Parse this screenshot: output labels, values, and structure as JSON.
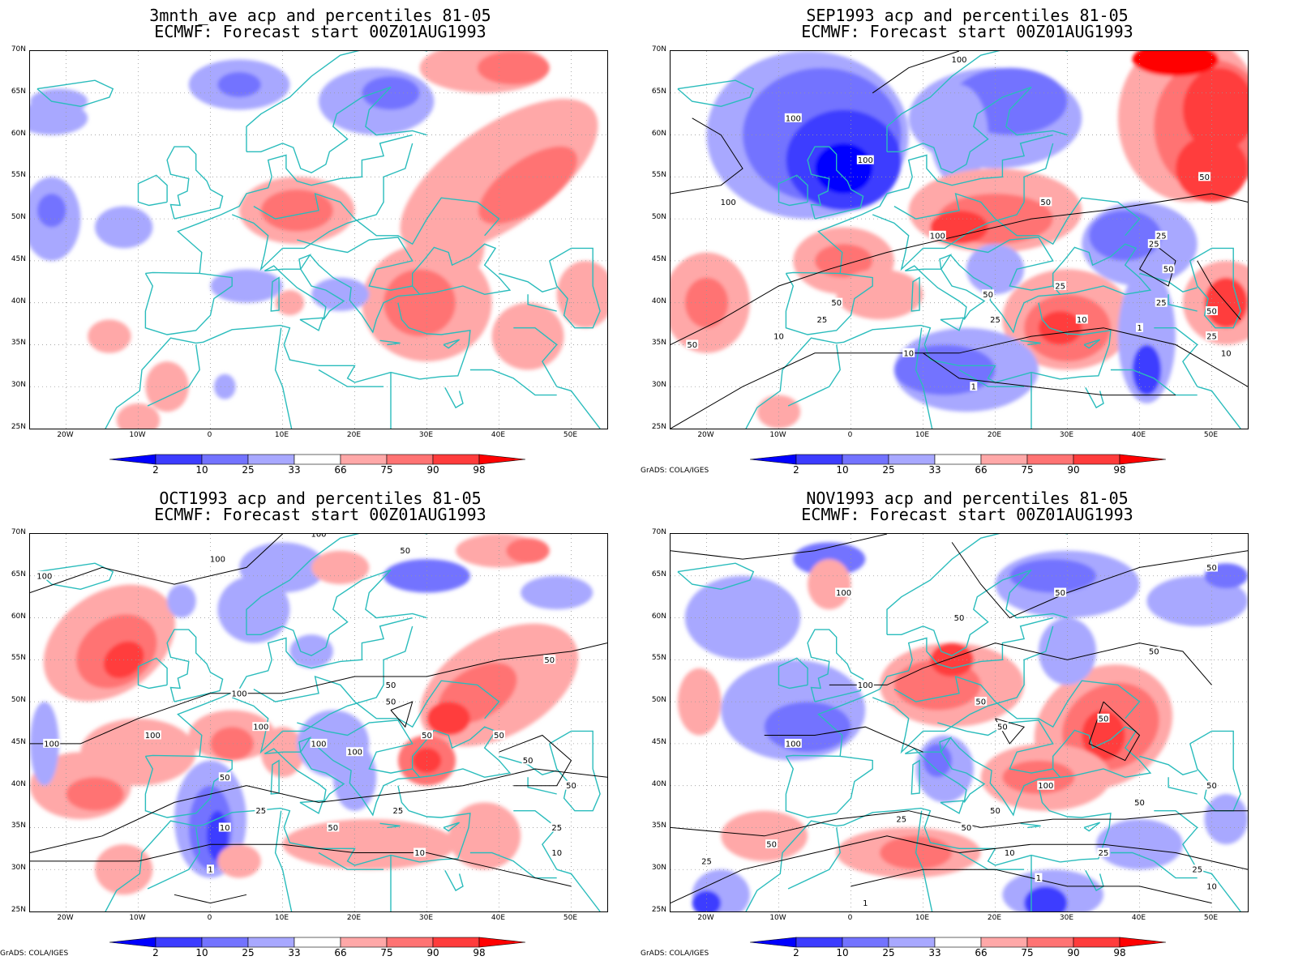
{
  "colors": {
    "blue_98": "#0000ff",
    "blue_90": "#3c3cff",
    "blue_75": "#7373ff",
    "blue_66": "#a8a8ff",
    "red_66": "#ffa8a8",
    "red_75": "#ff7373",
    "red_90": "#ff3c3c",
    "red_98": "#ff0000",
    "coast": "#2abcbc",
    "contour": "#000000",
    "grid": "#999999"
  },
  "axes": {
    "lat_ticks": [
      "70N",
      "65N",
      "60N",
      "55N",
      "50N",
      "45N",
      "40N",
      "35N",
      "30N",
      "25N"
    ],
    "lon_ticks": [
      "20W",
      "10W",
      "0",
      "10E",
      "20E",
      "30E",
      "40E",
      "50E"
    ],
    "lat_range": [
      25,
      70
    ],
    "lon_range": [
      -25,
      55
    ]
  },
  "colorbar": {
    "labels": [
      "2",
      "10",
      "25",
      "33",
      "66",
      "75",
      "90",
      "98"
    ],
    "colors": [
      "#0000ff",
      "#3c3cff",
      "#7373ff",
      "#a8a8ff",
      "#ffffff",
      "#ffa8a8",
      "#ff7373",
      "#ff3c3c",
      "#ff0000"
    ]
  },
  "credit": "GrADS: COLA/IGES",
  "panels": [
    {
      "title1": "3mnth_ave acp and percentiles 81-05",
      "title2": "ECMWF: Forecast start 00Z01AUG1993",
      "contours": []
    },
    {
      "title1": "SEP1993 acp and percentiles 81-05",
      "title2": "ECMWF: Forecast start 00Z01AUG1993",
      "contours": [
        {
          "label": "100",
          "lon": -8,
          "lat": 62
        },
        {
          "label": "100",
          "lon": 2,
          "lat": 57
        },
        {
          "label": "100",
          "lon": -17,
          "lat": 52
        },
        {
          "label": "100",
          "lon": 12,
          "lat": 48
        },
        {
          "label": "100",
          "lon": 15,
          "lat": 69
        },
        {
          "label": "50",
          "lon": 27,
          "lat": 52
        },
        {
          "label": "50",
          "lon": 49,
          "lat": 55
        },
        {
          "label": "50",
          "lon": -2,
          "lat": 40
        },
        {
          "label": "50",
          "lon": -22,
          "lat": 35
        },
        {
          "label": "50",
          "lon": 19,
          "lat": 41
        },
        {
          "label": "50",
          "lon": 44,
          "lat": 44
        },
        {
          "label": "50",
          "lon": 50,
          "lat": 39
        },
        {
          "label": "25",
          "lon": -4,
          "lat": 38
        },
        {
          "label": "25",
          "lon": 43,
          "lat": 48
        },
        {
          "label": "25",
          "lon": 42,
          "lat": 47
        },
        {
          "label": "25",
          "lon": 29,
          "lat": 42
        },
        {
          "label": "25",
          "lon": 20,
          "lat": 38
        },
        {
          "label": "25",
          "lon": 43,
          "lat": 40
        },
        {
          "label": "25",
          "lon": 50,
          "lat": 36
        },
        {
          "label": "10",
          "lon": -10,
          "lat": 36
        },
        {
          "label": "10",
          "lon": 32,
          "lat": 38
        },
        {
          "label": "10",
          "lon": 8,
          "lat": 34
        },
        {
          "label": "10",
          "lon": 52,
          "lat": 34
        },
        {
          "label": "1",
          "lon": 40,
          "lat": 37
        },
        {
          "label": "1",
          "lon": 17,
          "lat": 30
        }
      ]
    },
    {
      "title1": "OCT1993 acp and percentiles 81-05",
      "title2": "ECMWF: Forecast start 00Z01AUG1993",
      "contours": [
        {
          "label": "100",
          "lon": -23,
          "lat": 65
        },
        {
          "label": "100",
          "lon": 1,
          "lat": 67
        },
        {
          "label": "100",
          "lon": 15,
          "lat": 70
        },
        {
          "label": "100",
          "lon": 4,
          "lat": 51
        },
        {
          "label": "100",
          "lon": -22,
          "lat": 45
        },
        {
          "label": "100",
          "lon": -8,
          "lat": 46
        },
        {
          "label": "100",
          "lon": 7,
          "lat": 47
        },
        {
          "label": "100",
          "lon": 15,
          "lat": 45
        },
        {
          "label": "100",
          "lon": 20,
          "lat": 44
        },
        {
          "label": "50",
          "lon": 27,
          "lat": 68
        },
        {
          "label": "50",
          "lon": 25,
          "lat": 52
        },
        {
          "label": "50",
          "lon": 25,
          "lat": 50
        },
        {
          "label": "50",
          "lon": 47,
          "lat": 55
        },
        {
          "label": "50",
          "lon": 30,
          "lat": 46
        },
        {
          "label": "50",
          "lon": 40,
          "lat": 46
        },
        {
          "label": "50",
          "lon": 44,
          "lat": 43
        },
        {
          "label": "50",
          "lon": 50,
          "lat": 40
        },
        {
          "label": "50",
          "lon": 2,
          "lat": 41
        },
        {
          "label": "50",
          "lon": 17,
          "lat": 35
        },
        {
          "label": "25",
          "lon": 7,
          "lat": 37
        },
        {
          "label": "25",
          "lon": 26,
          "lat": 37
        },
        {
          "label": "25",
          "lon": 48,
          "lat": 35
        },
        {
          "label": "10",
          "lon": 2,
          "lat": 35
        },
        {
          "label": "10",
          "lon": 29,
          "lat": 32
        },
        {
          "label": "10",
          "lon": 48,
          "lat": 32
        },
        {
          "label": "1",
          "lon": 0,
          "lat": 30
        }
      ]
    },
    {
      "title1": "NOV1993 acp and percentiles 81-05",
      "title2": "ECMWF: Forecast start 00Z01AUG1993",
      "contours": [
        {
          "label": "50",
          "lon": 50,
          "lat": 66
        },
        {
          "label": "50",
          "lon": 29,
          "lat": 63
        },
        {
          "label": "50",
          "lon": 15,
          "lat": 60
        },
        {
          "label": "100",
          "lon": -1,
          "lat": 63
        },
        {
          "label": "50",
          "lon": 42,
          "lat": 56
        },
        {
          "label": "100",
          "lon": 2,
          "lat": 52
        },
        {
          "label": "50",
          "lon": 18,
          "lat": 50
        },
        {
          "label": "50",
          "lon": 21,
          "lat": 47
        },
        {
          "label": "50",
          "lon": 35,
          "lat": 48
        },
        {
          "label": "100",
          "lon": -8,
          "lat": 45
        },
        {
          "label": "100",
          "lon": 27,
          "lat": 40
        },
        {
          "label": "50",
          "lon": 50,
          "lat": 40
        },
        {
          "label": "50",
          "lon": 40,
          "lat": 38
        },
        {
          "label": "50",
          "lon": 20,
          "lat": 37
        },
        {
          "label": "50",
          "lon": 16,
          "lat": 35
        },
        {
          "label": "50",
          "lon": -11,
          "lat": 33
        },
        {
          "label": "25",
          "lon": 7,
          "lat": 36
        },
        {
          "label": "25",
          "lon": 35,
          "lat": 32
        },
        {
          "label": "25",
          "lon": -20,
          "lat": 31
        },
        {
          "label": "25",
          "lon": 48,
          "lat": 30
        },
        {
          "label": "10",
          "lon": 22,
          "lat": 32
        },
        {
          "label": "10",
          "lon": 50,
          "lat": 28
        },
        {
          "label": "1",
          "lon": 26,
          "lat": 29
        },
        {
          "label": "1",
          "lon": 2,
          "lat": 26
        }
      ]
    }
  ]
}
